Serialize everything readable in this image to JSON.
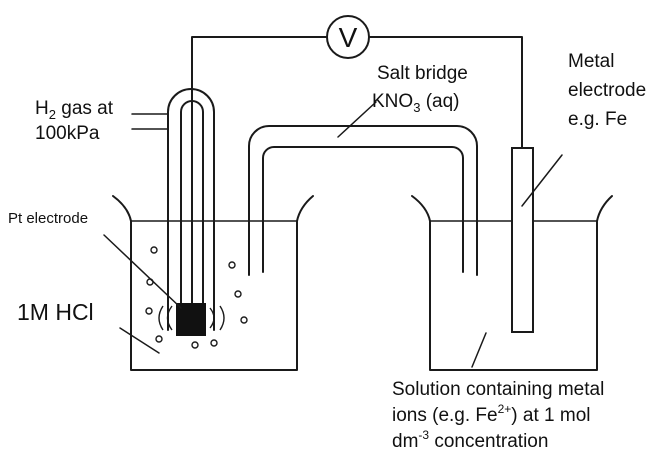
{
  "voltmeter": {
    "symbol": "V"
  },
  "labels": {
    "h2_gas_line1_pre": "H",
    "h2_gas_line1_sub": "2",
    "h2_gas_line1_post": " gas at",
    "h2_gas_line2": "100kPa",
    "salt_bridge_line1": "Salt bridge",
    "salt_bridge_line2_pre": "KNO",
    "salt_bridge_line2_sub": "3",
    "salt_bridge_line2_post": " (aq)",
    "metal_electrode_line1": "Metal",
    "metal_electrode_line2": "electrode",
    "metal_electrode_line3": "e.g. Fe",
    "pt_electrode": "Pt electrode",
    "hcl": "1M HCl",
    "solution_line1": "Solution containing metal",
    "solution_line2_pre": "ions (e.g. Fe",
    "solution_line2_sup": "2+",
    "solution_line2_post": ") at 1 mol",
    "solution_line3_pre": "dm",
    "solution_line3_sup": "-3",
    "solution_line3_post": " concentration"
  }
}
